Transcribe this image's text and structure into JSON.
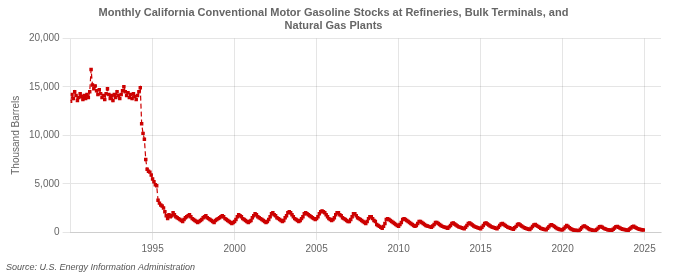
{
  "chart_data": {
    "type": "line",
    "title": "Monthly California Conventional Motor Gasoline Stocks at Refineries, Bulk Terminals, and\nNatural Gas Plants",
    "ylabel": "Thousand Barrels",
    "annotation": "Source: U.S. Energy Information Administration",
    "color": "#cc0000",
    "line_style": "dashed",
    "marker": "square",
    "grid": true,
    "xlim": [
      1990,
      2026
    ],
    "ylim": [
      0,
      20000
    ],
    "xticks": [
      1995,
      2000,
      2005,
      2010,
      2015,
      2020,
      2025
    ],
    "yticks": [
      0,
      {
        "value": 5000,
        "label": "5,000"
      },
      {
        "value": 10000,
        "label": "10,000"
      },
      {
        "value": 15000,
        "label": "15,000"
      },
      {
        "value": 20000,
        "label": "20,000"
      }
    ],
    "x": [
      1990.0,
      1990.083,
      1990.167,
      1990.25,
      1990.333,
      1990.417,
      1990.5,
      1990.583,
      1990.667,
      1990.75,
      1990.833,
      1990.917,
      1991.0,
      1991.083,
      1991.167,
      1991.25,
      1991.333,
      1991.417,
      1991.5,
      1991.583,
      1991.667,
      1991.75,
      1991.833,
      1991.917,
      1992.0,
      1992.083,
      1992.167,
      1992.25,
      1992.333,
      1992.417,
      1992.5,
      1992.583,
      1992.667,
      1992.75,
      1992.833,
      1992.917,
      1993.0,
      1993.083,
      1993.167,
      1993.25,
      1993.333,
      1993.417,
      1993.5,
      1993.583,
      1993.667,
      1993.75,
      1993.833,
      1993.917,
      1994.0,
      1994.083,
      1994.167,
      1994.25,
      1994.333,
      1994.417,
      1994.5,
      1994.583,
      1994.667,
      1994.75,
      1994.833,
      1994.917,
      1995.0,
      1995.083,
      1995.167,
      1995.25,
      1995.333,
      1995.417,
      1995.5,
      1995.583,
      1995.667,
      1995.75,
      1995.833,
      1995.917,
      1996.0,
      1996.083,
      1996.167,
      1996.25,
      1996.333,
      1996.417,
      1996.5,
      1996.583,
      1996.667,
      1996.75,
      1996.833,
      1996.917,
      1997.0,
      1997.083,
      1997.167,
      1997.25,
      1997.333,
      1997.417,
      1997.5,
      1997.583,
      1997.667,
      1997.75,
      1997.833,
      1997.917,
      1998.0,
      1998.083,
      1998.167,
      1998.25,
      1998.333,
      1998.417,
      1998.5,
      1998.583,
      1998.667,
      1998.75,
      1998.833,
      1998.917,
      1999.0,
      1999.083,
      1999.167,
      1999.25,
      1999.333,
      1999.417,
      1999.5,
      1999.583,
      1999.667,
      1999.75,
      1999.833,
      1999.917,
      2000.0,
      2000.083,
      2000.167,
      2000.25,
      2000.333,
      2000.417,
      2000.5,
      2000.583,
      2000.667,
      2000.75,
      2000.833,
      2000.917,
      2001.0,
      2001.083,
      2001.167,
      2001.25,
      2001.333,
      2001.417,
      2001.5,
      2001.583,
      2001.667,
      2001.75,
      2001.833,
      2001.917,
      2002.0,
      2002.083,
      2002.167,
      2002.25,
      2002.333,
      2002.417,
      2002.5,
      2002.583,
      2002.667,
      2002.75,
      2002.833,
      2002.917,
      2003.0,
      2003.083,
      2003.167,
      2003.25,
      2003.333,
      2003.417,
      2003.5,
      2003.583,
      2003.667,
      2003.75,
      2003.833,
      2003.917,
      2004.0,
      2004.083,
      2004.167,
      2004.25,
      2004.333,
      2004.417,
      2004.5,
      2004.583,
      2004.667,
      2004.75,
      2004.833,
      2004.917,
      2005.0,
      2005.083,
      2005.167,
      2005.25,
      2005.333,
      2005.417,
      2005.5,
      2005.583,
      2005.667,
      2005.75,
      2005.833,
      2005.917,
      2006.0,
      2006.083,
      2006.167,
      2006.25,
      2006.333,
      2006.417,
      2006.5,
      2006.583,
      2006.667,
      2006.75,
      2006.833,
      2006.917,
      2007.0,
      2007.083,
      2007.167,
      2007.25,
      2007.333,
      2007.417,
      2007.5,
      2007.583,
      2007.667,
      2007.75,
      2007.833,
      2007.917,
      2008.0,
      2008.083,
      2008.167,
      2008.25,
      2008.333,
      2008.417,
      2008.5,
      2008.583,
      2008.667,
      2008.75,
      2008.833,
      2008.917,
      2009.0,
      2009.083,
      2009.167,
      2009.25,
      2009.333,
      2009.417,
      2009.5,
      2009.583,
      2009.667,
      2009.75,
      2009.833,
      2009.917,
      2010.0,
      2010.083,
      2010.167,
      2010.25,
      2010.333,
      2010.417,
      2010.5,
      2010.583,
      2010.667,
      2010.75,
      2010.833,
      2010.917,
      2011.0,
      2011.083,
      2011.167,
      2011.25,
      2011.333,
      2011.417,
      2011.5,
      2011.583,
      2011.667,
      2011.75,
      2011.833,
      2011.917,
      2012.0,
      2012.083,
      2012.167,
      2012.25,
      2012.333,
      2012.417,
      2012.5,
      2012.583,
      2012.667,
      2012.75,
      2012.833,
      2012.917,
      2013.0,
      2013.083,
      2013.167,
      2013.25,
      2013.333,
      2013.417,
      2013.5,
      2013.583,
      2013.667,
      2013.75,
      2013.833,
      2013.917,
      2014.0,
      2014.083,
      2014.167,
      2014.25,
      2014.333,
      2014.417,
      2014.5,
      2014.583,
      2014.667,
      2014.75,
      2014.833,
      2014.917,
      2015.0,
      2015.083,
      2015.167,
      2015.25,
      2015.333,
      2015.417,
      2015.5,
      2015.583,
      2015.667,
      2015.75,
      2015.833,
      2015.917,
      2016.0,
      2016.083,
      2016.167,
      2016.25,
      2016.333,
      2016.417,
      2016.5,
      2016.583,
      2016.667,
      2016.75,
      2016.833,
      2016.917,
      2017.0,
      2017.083,
      2017.167,
      2017.25,
      2017.333,
      2017.417,
      2017.5,
      2017.583,
      2017.667,
      2017.75,
      2017.833,
      2017.917,
      2018.0,
      2018.083,
      2018.167,
      2018.25,
      2018.333,
      2018.417,
      2018.5,
      2018.583,
      2018.667,
      2018.75,
      2018.833,
      2018.917,
      2019.0,
      2019.083,
      2019.167,
      2019.25,
      2019.333,
      2019.417,
      2019.5,
      2019.583,
      2019.667,
      2019.75,
      2019.833,
      2019.917,
      2020.0,
      2020.083,
      2020.167,
      2020.25,
      2020.333,
      2020.417,
      2020.5,
      2020.583,
      2020.667,
      2020.75,
      2020.833,
      2020.917,
      2021.0,
      2021.083,
      2021.167,
      2021.25,
      2021.333,
      2021.417,
      2021.5,
      2021.583,
      2021.667,
      2021.75,
      2021.833,
      2021.917,
      2022.0,
      2022.083,
      2022.167,
      2022.25,
      2022.333,
      2022.417,
      2022.5,
      2022.583,
      2022.667,
      2022.75,
      2022.833,
      2022.917,
      2023.0,
      2023.083,
      2023.167,
      2023.25,
      2023.333,
      2023.417,
      2023.5,
      2023.583,
      2023.667,
      2023.75,
      2023.833,
      2023.917,
      2024.0,
      2024.083,
      2024.167,
      2024.25,
      2024.333,
      2024.417,
      2024.5,
      2024.583,
      2024.667,
      2024.75,
      2024.833,
      2024.917
    ],
    "values": [
      13500,
      14200,
      13800,
      14500,
      14100,
      13600,
      13900,
      14300,
      14000,
      13700,
      14100,
      13800,
      14200,
      13900,
      14500,
      16800,
      15200,
      14800,
      15100,
      14600,
      14200,
      14700,
      14300,
      13900,
      14100,
      13700,
      14300,
      14800,
      14200,
      13800,
      14100,
      13600,
      14200,
      13900,
      14500,
      14100,
      13800,
      14200,
      14600,
      15000,
      14500,
      14100,
      14400,
      13900,
      14200,
      13800,
      14300,
      14000,
      13700,
      14100,
      14500,
      14900,
      11200,
      10200,
      9600,
      7500,
      6500,
      6300,
      6200,
      5900,
      5500,
      5200,
      4900,
      4800,
      3300,
      3000,
      2800,
      2700,
      2500,
      2100,
      1700,
      1400,
      1800,
      1600,
      1700,
      2000,
      1800,
      1600,
      1500,
      1400,
      1300,
      1200,
      1100,
      1300,
      1500,
      1600,
      1700,
      1800,
      1600,
      1400,
      1300,
      1200,
      1100,
      1000,
      1100,
      1200,
      1300,
      1500,
      1600,
      1700,
      1500,
      1400,
      1300,
      1200,
      1100,
      1000,
      1200,
      1300,
      1400,
      1500,
      1600,
      1700,
      1600,
      1400,
      1300,
      1200,
      1100,
      1000,
      900,
      1000,
      1100,
      1300,
      1600,
      1800,
      1700,
      1600,
      1400,
      1300,
      1200,
      1100,
      1000,
      1100,
      1200,
      1500,
      1700,
      1900,
      1800,
      1600,
      1500,
      1400,
      1300,
      1200,
      1100,
      1000,
      1100,
      1300,
      1600,
      1900,
      2000,
      1800,
      1700,
      1500,
      1400,
      1300,
      1200,
      1100,
      1200,
      1500,
      1700,
      2000,
      2100,
      2000,
      1800,
      1600,
      1400,
      1300,
      1200,
      1100,
      1200,
      1400,
      1600,
      1900,
      2000,
      1900,
      1800,
      1700,
      1600,
      1500,
      1400,
      1300,
      1400,
      1600,
      1900,
      2100,
      2200,
      2100,
      2000,
      1800,
      1600,
      1400,
      1300,
      1200,
      1300,
      1500,
      1800,
      2000,
      2000,
      1800,
      1700,
      1500,
      1400,
      1300,
      1200,
      1100,
      1100,
      1300,
      1600,
      1900,
      1900,
      1700,
      1500,
      1400,
      1300,
      1200,
      1100,
      1000,
      900,
      1100,
      1400,
      1600,
      1600,
      1400,
      1200,
      1100,
      800,
      700,
      600,
      500,
      400,
      600,
      900,
      1300,
      1400,
      1300,
      1200,
      1100,
      1000,
      900,
      800,
      700,
      600,
      800,
      1000,
      1300,
      1400,
      1300,
      1200,
      1100,
      1000,
      900,
      800,
      700,
      600,
      700,
      900,
      1100,
      1100,
      1000,
      900,
      800,
      700,
      650,
      600,
      550,
      500,
      650,
      800,
      1000,
      1000,
      900,
      800,
      700,
      600,
      550,
      500,
      450,
      400,
      550,
      700,
      900,
      950,
      850,
      750,
      650,
      550,
      500,
      450,
      400,
      350,
      500,
      700,
      900,
      950,
      850,
      750,
      650,
      550,
      500,
      450,
      400,
      350,
      500,
      700,
      900,
      950,
      850,
      750,
      650,
      550,
      500,
      450,
      400,
      350,
      500,
      700,
      850,
      900,
      800,
      700,
      600,
      500,
      450,
      400,
      350,
      300,
      450,
      600,
      800,
      850,
      750,
      650,
      550,
      450,
      400,
      350,
      300,
      280,
      420,
      580,
      750,
      800,
      700,
      600,
      500,
      400,
      350,
      300,
      280,
      260,
      400,
      560,
      730,
      780,
      680,
      580,
      480,
      380,
      330,
      280,
      260,
      240,
      380,
      540,
      700,
      600,
      450,
      350,
      280,
      220,
      200,
      180,
      170,
      160,
      300,
      450,
      600,
      650,
      550,
      450,
      350,
      280,
      240,
      200,
      180,
      170,
      280,
      420,
      560,
      600,
      500,
      420,
      350,
      290,
      260,
      230,
      210,
      200,
      310,
      430,
      560,
      600,
      510,
      430,
      360,
      300,
      270,
      240,
      220,
      210,
      320,
      440,
      570,
      610,
      520,
      440,
      370,
      310,
      280,
      250,
      230
    ]
  }
}
